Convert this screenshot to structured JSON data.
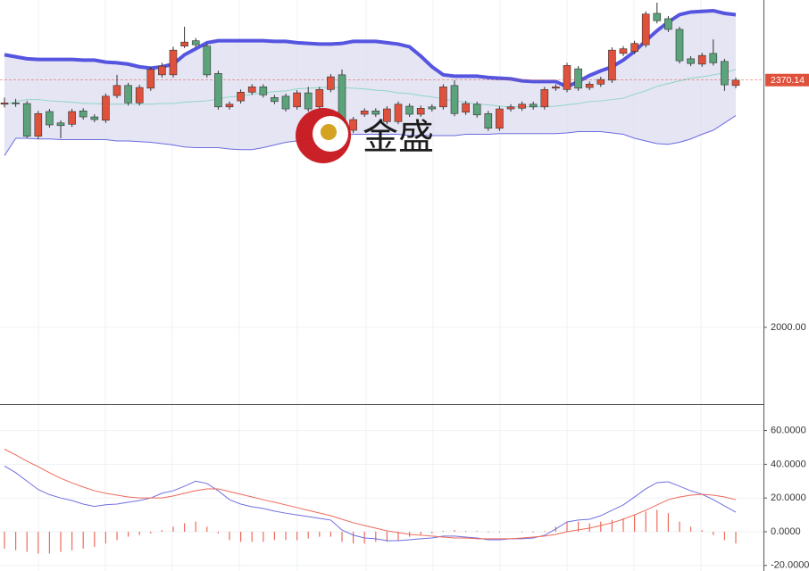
{
  "chart_data": [
    {
      "type": "candlestick",
      "watermark": "金盛",
      "open": [
        2334,
        2336,
        2335,
        2286,
        2323,
        2306,
        2304,
        2324,
        2315,
        2310,
        2347,
        2362,
        2336,
        2358,
        2378,
        2378,
        2421,
        2429,
        2421,
        2380,
        2330,
        2339,
        2352,
        2360,
        2344,
        2346,
        2330,
        2351,
        2330,
        2356,
        2378,
        2295,
        2319,
        2324,
        2308,
        2308,
        2331,
        2319,
        2330,
        2330,
        2362,
        2322,
        2334,
        2320,
        2298,
        2327,
        2328,
        2334,
        2330,
        2358,
        2356,
        2387,
        2359,
        2364,
        2370,
        2410,
        2413,
        2423,
        2470,
        2462,
        2446,
        2402,
        2394,
        2410,
        2398,
        2362
      ],
      "high": [
        2344,
        2342,
        2339,
        2324,
        2327,
        2310,
        2327,
        2328,
        2319,
        2350,
        2378,
        2366,
        2363,
        2390,
        2396,
        2420,
        2450,
        2433,
        2425,
        2384,
        2338,
        2356,
        2364,
        2364,
        2348,
        2350,
        2355,
        2360,
        2360,
        2379,
        2386,
        2315,
        2328,
        2328,
        2331,
        2338,
        2335,
        2332,
        2334,
        2364,
        2370,
        2339,
        2338,
        2324,
        2331,
        2334,
        2338,
        2338,
        2360,
        2364,
        2396,
        2391,
        2368,
        2375,
        2419,
        2421,
        2429,
        2473,
        2486,
        2466,
        2450,
        2406,
        2411,
        2431,
        2402,
        2374
      ],
      "low": [
        2329,
        2330,
        2283,
        2282,
        2299,
        2283,
        2300,
        2311,
        2307,
        2306,
        2343,
        2332,
        2332,
        2354,
        2374,
        2374,
        2418,
        2419,
        2374,
        2326,
        2326,
        2335,
        2348,
        2344,
        2334,
        2323,
        2326,
        2323,
        2326,
        2352,
        2292,
        2291,
        2315,
        2315,
        2304,
        2304,
        2315,
        2315,
        2323,
        2326,
        2316,
        2318,
        2314,
        2294,
        2294,
        2323,
        2324,
        2326,
        2326,
        2354,
        2352,
        2354,
        2355,
        2360,
        2366,
        2406,
        2409,
        2419,
        2455,
        2442,
        2395,
        2391,
        2390,
        2392,
        2354,
        2358
      ],
      "close": [
        2336,
        2335,
        2286,
        2320,
        2303,
        2302,
        2323,
        2315,
        2311,
        2346,
        2362,
        2336,
        2359,
        2386,
        2391,
        2415,
        2427,
        2423,
        2378,
        2330,
        2334,
        2352,
        2360,
        2348,
        2338,
        2327,
        2351,
        2327,
        2356,
        2375,
        2296,
        2311,
        2324,
        2319,
        2327,
        2334,
        2319,
        2328,
        2327,
        2360,
        2320,
        2335,
        2318,
        2298,
        2327,
        2330,
        2334,
        2330,
        2356,
        2360,
        2392,
        2358,
        2364,
        2371,
        2415,
        2417,
        2425,
        2469,
        2459,
        2446,
        2399,
        2395,
        2407,
        2396,
        2363,
        2370.14
      ],
      "up_color": "#e0513c",
      "down_color": "#5ba37a",
      "series": [
        {
          "color": "#5555e0",
          "values": [
            2408,
            2405,
            2402,
            2401,
            2401,
            2401,
            2401,
            2400,
            2400,
            2397,
            2396,
            2394,
            2390,
            2388,
            2390,
            2394,
            2408,
            2417,
            2426,
            2429,
            2429,
            2429,
            2429,
            2429,
            2428,
            2428,
            2426,
            2425,
            2424,
            2424,
            2425,
            2428,
            2428,
            2428,
            2426,
            2424,
            2420,
            2406,
            2390,
            2378,
            2376,
            2376,
            2376,
            2374,
            2373,
            2372,
            2369,
            2368,
            2368,
            2368,
            2360,
            2368,
            2377,
            2384,
            2390,
            2400,
            2413,
            2429,
            2444,
            2457,
            2468,
            2472,
            2473,
            2474,
            2470,
            2468
          ]
        },
        {
          "color": "#8fd6c4",
          "values": [
            2333,
            2338,
            2341,
            2341,
            2339,
            2338,
            2337,
            2335,
            2335,
            2334,
            2334,
            2334,
            2334,
            2334,
            2335,
            2335,
            2337,
            2338,
            2339,
            2342,
            2345,
            2346,
            2349,
            2351,
            2353,
            2354,
            2357,
            2358,
            2359,
            2359,
            2359,
            2358,
            2357,
            2355,
            2354,
            2351,
            2350,
            2347,
            2345,
            2342,
            2339,
            2337,
            2334,
            2333,
            2331,
            2330,
            2330,
            2330,
            2330,
            2331,
            2333,
            2335,
            2338,
            2339,
            2341,
            2343,
            2349,
            2354,
            2361,
            2365,
            2369,
            2373,
            2375,
            2378,
            2381,
            2386
          ]
        },
        {
          "color": "#6b6be0",
          "values": [
            2257,
            2283,
            2283,
            2282,
            2282,
            2281,
            2281,
            2281,
            2281,
            2281,
            2279,
            2279,
            2278,
            2277,
            2275,
            2273,
            2270,
            2269,
            2269,
            2269,
            2267,
            2266,
            2266,
            2269,
            2273,
            2277,
            2279,
            2282,
            2283,
            2286,
            2287,
            2289,
            2289,
            2289,
            2289,
            2289,
            2287,
            2287,
            2287,
            2287,
            2287,
            2289,
            2289,
            2289,
            2290,
            2290,
            2290,
            2290,
            2290,
            2290,
            2291,
            2293,
            2293,
            2293,
            2291,
            2289,
            2283,
            2279,
            2275,
            2274,
            2277,
            2282,
            2289,
            2295,
            2306,
            2317
          ]
        }
      ],
      "ylim": [
        1885,
        2490
      ],
      "yticks": [
        {
          "value": 2000,
          "label": "2000.00"
        }
      ]
    },
    {
      "type": "macd",
      "series": [
        {
          "color": "#6f6fe0",
          "values": [
            39,
            35,
            30,
            25,
            22,
            20,
            18.5,
            16.4,
            15,
            16,
            16.4,
            17.5,
            18.5,
            20,
            22.8,
            24.3,
            27,
            30,
            28.6,
            24.3,
            19,
            16.4,
            14.8,
            13.8,
            12.2,
            11,
            10,
            9,
            7.9,
            6.9,
            1,
            -2,
            -3.7,
            -4.2,
            -5.3,
            -5.3,
            -4.8,
            -4.2,
            -3.7,
            -2.6,
            -2.6,
            -3.2,
            -3.7,
            -4.8,
            -4.8,
            -4.2,
            -4.2,
            -3.7,
            -2.1,
            1.6,
            5.8,
            6.9,
            7.4,
            9.5,
            12.7,
            15.9,
            20.6,
            25.4,
            29.1,
            29.6,
            27,
            24.3,
            22.2,
            19,
            15.3,
            11.6
          ]
        },
        {
          "color": "#ee6a5a",
          "values": [
            49,
            45.5,
            41.8,
            38.6,
            35,
            31.7,
            29,
            26.5,
            24.3,
            22.8,
            21.7,
            20.6,
            20,
            20,
            20,
            21.2,
            22.8,
            24.3,
            25.4,
            25.4,
            23.8,
            22.2,
            20.6,
            19,
            17.5,
            15.9,
            14.3,
            12.7,
            11.1,
            9.5,
            7.4,
            5.3,
            3.7,
            2.1,
            0.5,
            -0.5,
            -1.6,
            -2.1,
            -2.6,
            -3.2,
            -3.7,
            -3.7,
            -4.2,
            -4.2,
            -4.2,
            -4.2,
            -3.7,
            -3.2,
            -2.6,
            -1.6,
            0,
            1.1,
            2.1,
            3.7,
            5.3,
            7.4,
            10,
            12.7,
            15.9,
            19,
            20.6,
            21.7,
            22.2,
            21.7,
            20.6,
            19
          ]
        }
      ],
      "histogram": [
        -10,
        -11,
        -12,
        -13,
        -13,
        -12,
        -11,
        -10,
        -9,
        -7,
        -5,
        -3,
        -2,
        -1,
        1,
        3,
        5,
        6,
        3,
        -1,
        -5,
        -6,
        -6,
        -6,
        -5,
        -5,
        -5,
        -4,
        -3,
        -3,
        -6,
        -7,
        -7,
        -6,
        -6,
        -5,
        -3,
        -2,
        -1,
        0.5,
        1,
        0.5,
        0.5,
        -0.5,
        -0.5,
        0,
        -0.5,
        -0.5,
        0.5,
        3,
        6,
        6,
        5,
        6,
        7,
        8,
        10,
        12,
        13,
        11,
        6,
        3,
        1,
        -2,
        -5,
        -7
      ],
      "histogram_color": "#ee6a5a",
      "ylim": [
        -23.3,
        74.6
      ],
      "yticks": [
        {
          "value": -20,
          "label": "-20.0000"
        },
        {
          "value": 0,
          "label": "0.0000"
        },
        {
          "value": 20,
          "label": "20.0000"
        },
        {
          "value": 40,
          "label": "40.0000"
        },
        {
          "value": 60,
          "label": "60.0000"
        }
      ]
    }
  ]
}
